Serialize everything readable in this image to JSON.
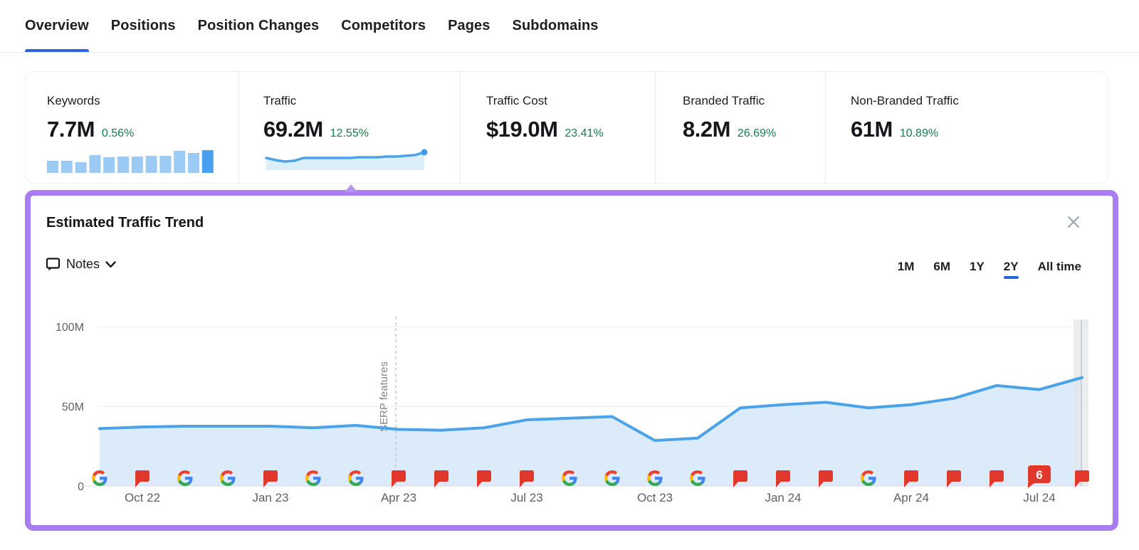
{
  "nav": {
    "tabs": [
      {
        "label": "Overview",
        "active": true
      },
      {
        "label": "Positions",
        "active": false
      },
      {
        "label": "Position Changes",
        "active": false
      },
      {
        "label": "Competitors",
        "active": false
      },
      {
        "label": "Pages",
        "active": false
      },
      {
        "label": "Subdomains",
        "active": false
      }
    ]
  },
  "metrics": {
    "cards": [
      {
        "title": "Keywords",
        "value": "7.7M",
        "change": "0.56%"
      },
      {
        "title": "Traffic",
        "value": "69.2M",
        "change": "12.55%"
      },
      {
        "title": "Traffic Cost",
        "value": "$19.0M",
        "change": "23.41%"
      },
      {
        "title": "Branded Traffic",
        "value": "8.2M",
        "change": "26.69%"
      },
      {
        "title": "Non-Branded Traffic",
        "value": "61M",
        "change": "10.89%"
      }
    ],
    "keywords_sparkline_bars": [
      17,
      17,
      15,
      25,
      22,
      23,
      23,
      24,
      24,
      31,
      28,
      32
    ],
    "traffic_sparkline": [
      15,
      12,
      10,
      11,
      15,
      15,
      15,
      15,
      15,
      15,
      16,
      16,
      16,
      17,
      17,
      18,
      19,
      23
    ]
  },
  "panel": {
    "title": "Estimated Traffic Trend",
    "close_icon": "close-icon",
    "notes": {
      "label": "Notes",
      "icon": "notes-bubble-icon",
      "chevron": "chevron-down-icon"
    },
    "ranges": [
      {
        "label": "1M",
        "active": false
      },
      {
        "label": "6M",
        "active": false
      },
      {
        "label": "1Y",
        "active": false
      },
      {
        "label": "2Y",
        "active": true
      },
      {
        "label": "All time",
        "active": false
      }
    ]
  },
  "chart_data": {
    "type": "area",
    "title": "Estimated Traffic Trend",
    "unit": "M visits",
    "x": [
      "Sep 22",
      "Oct 22",
      "Nov 22",
      "Dec 22",
      "Jan 23",
      "Feb 23",
      "Mar 23",
      "Apr 23",
      "May 23",
      "Jun 23",
      "Jul 23",
      "Aug 23",
      "Sep 23",
      "Oct 23",
      "Nov 23",
      "Dec 23",
      "Jan 24",
      "Feb 24",
      "Mar 24",
      "Apr 24",
      "May 24",
      "Jun 24",
      "Jul 24",
      "Aug 24"
    ],
    "values": [
      36,
      37,
      37.5,
      37.5,
      37.5,
      36.5,
      38,
      35.5,
      35,
      36.5,
      41.5,
      42.5,
      43.5,
      28.5,
      30,
      49,
      51,
      52.5,
      49,
      51,
      55,
      63,
      60.5,
      68
    ],
    "ylim": [
      0,
      100
    ],
    "yticks": [
      {
        "v": 100,
        "label": "100M"
      },
      {
        "v": 50,
        "label": "50M"
      },
      {
        "v": 0,
        "label": "0"
      }
    ],
    "x_tick_indices": [
      1,
      4,
      7,
      10,
      13,
      16,
      19,
      22
    ],
    "x_tick_labels": [
      "Oct 22",
      "Jan 23",
      "Apr 23",
      "Jul 23",
      "Oct 23",
      "Jan 24",
      "Apr 24",
      "Jul 24"
    ],
    "grid": "horizontal",
    "legend": "none",
    "annotation": {
      "label": "SERP features",
      "month_index": 7
    },
    "markers": [
      "google",
      "note",
      "google",
      "google",
      "note",
      "google",
      "google",
      "note",
      "note",
      "note",
      "note",
      "google",
      "google",
      "google",
      "google",
      "note",
      "note",
      "note",
      "google",
      "note",
      "note",
      "note",
      "note-badge",
      "note"
    ],
    "note_badge": {
      "month": "Jul 24",
      "count": "6"
    },
    "colors": {
      "line": "#4aa2e9",
      "area": "#dcebfa",
      "flag_red": "#e0382c",
      "accent_blue": "#2a66db",
      "highlight_purple": "#a87df0",
      "positive_green": "#177b4d",
      "axis_text": "#5d6167",
      "gridline": "#e8e9eb"
    }
  }
}
